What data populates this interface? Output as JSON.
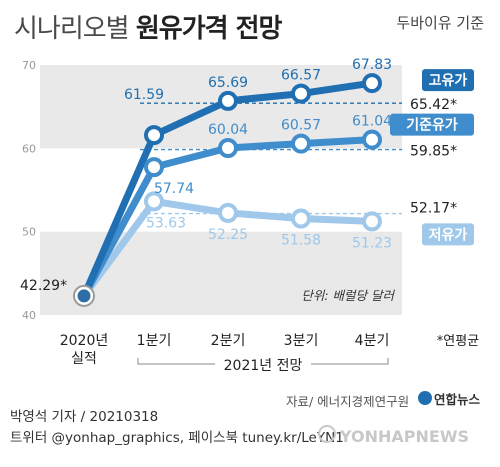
{
  "header": {
    "title_light": "시나리오별",
    "title_bold": "원유가격 전망",
    "basis": "두바이유 기준"
  },
  "chart_data": {
    "type": "line",
    "categories": [
      "2020년\n실적",
      "1분기",
      "2분기",
      "3분기",
      "4분기"
    ],
    "group_label": "2021년 전망",
    "unit_label": "단위: 배럴당 달러",
    "yticks": [
      40,
      50,
      60,
      70
    ],
    "ylim": [
      40,
      70
    ],
    "base": {
      "value": 42.29,
      "label": "42.29*"
    },
    "series": [
      {
        "name": "고유가",
        "values": [
          42.29,
          61.59,
          65.69,
          66.57,
          67.83
        ],
        "value_labels": [
          "",
          "61.59",
          "65.69",
          "66.57",
          "67.83"
        ],
        "annual": 65.42,
        "annual_label": "65.42*",
        "color": "#1f6fb2"
      },
      {
        "name": "기준유가",
        "values": [
          42.29,
          57.74,
          60.04,
          60.57,
          61.04
        ],
        "value_labels": [
          "",
          "57.74",
          "60.04",
          "60.57",
          "61.04"
        ],
        "annual": 59.85,
        "annual_label": "59.85*",
        "color": "#3f8dcc"
      },
      {
        "name": "저유가",
        "values": [
          42.29,
          53.63,
          52.25,
          51.58,
          51.23
        ],
        "value_labels": [
          "",
          "53.63",
          "52.25",
          "51.58",
          "51.23"
        ],
        "annual": 52.17,
        "annual_label": "52.17*",
        "color": "#9fc8ea"
      }
    ],
    "annual_note": "*연평균",
    "legend": "right"
  },
  "footer": {
    "source": "자료/ 에너지경제연구원",
    "brand": "연합뉴스",
    "reporter": "박영석 기자 / 20210318",
    "social": "트위터 @yonhap_graphics, 페이스북 tuney.kr/LeYN1",
    "watermark": "YONHAPNEWS"
  }
}
